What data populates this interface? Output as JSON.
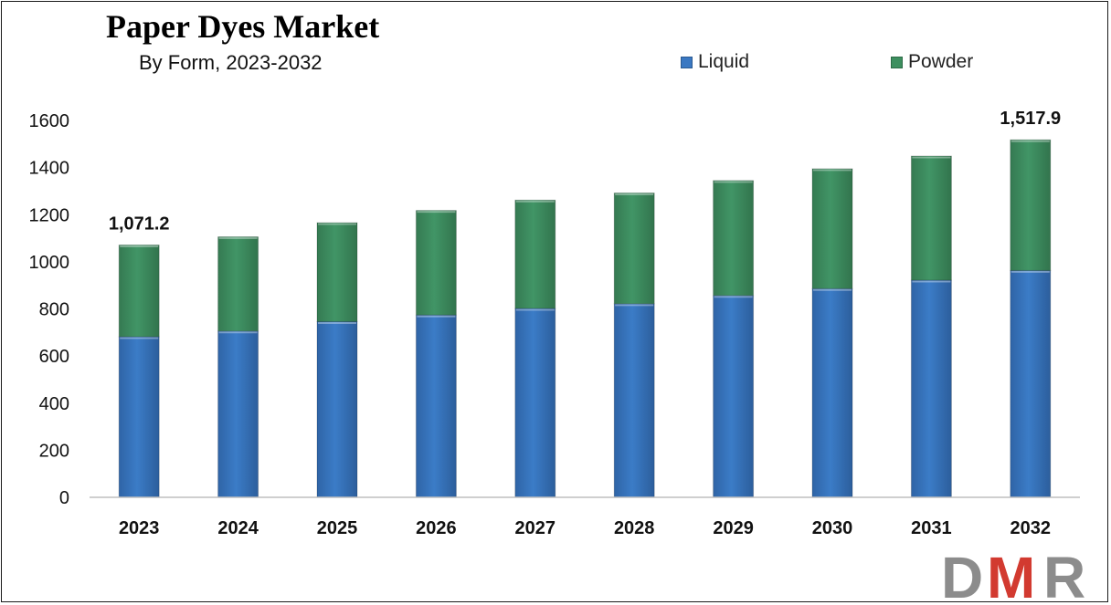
{
  "chart_data": {
    "type": "bar",
    "stacked": true,
    "title": "Paper Dyes Market",
    "subtitle": "By Form, 2023-2032",
    "categories": [
      "2023",
      "2024",
      "2025",
      "2026",
      "2027",
      "2028",
      "2029",
      "2030",
      "2031",
      "2032"
    ],
    "series": [
      {
        "name": "Liquid",
        "color": "#3a78c2",
        "values": [
          682,
          706,
          746,
          774,
          802,
          822,
          857,
          886,
          922,
          963
        ]
      },
      {
        "name": "Powder",
        "color": "#3d8f5f",
        "values": [
          389.2,
          400,
          420,
          444,
          460,
          470,
          488,
          509,
          527,
          554.9
        ]
      }
    ],
    "yticks": [
      "0",
      "200",
      "400",
      "600",
      "800",
      "1000",
      "1200",
      "1400",
      "1600"
    ],
    "ylim": [
      0,
      1600
    ],
    "grid": false,
    "legend_position": "top-right",
    "data_labels": [
      {
        "category": "2023",
        "text": "1,071.2"
      },
      {
        "category": "2032",
        "text": "1,517.9"
      }
    ]
  },
  "logo": {
    "text": "DMR",
    "colors": [
      "#8c8c8c",
      "#d23a30"
    ]
  }
}
